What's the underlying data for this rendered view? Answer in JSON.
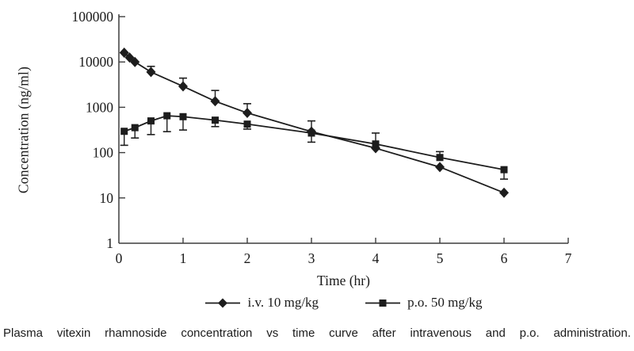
{
  "caption": "Plasma vitexin rhamnoside concentration vs time curve after intravenous and p.o. administration.",
  "chart_data": {
    "type": "line",
    "title": "",
    "xlabel": "Time (hr)",
    "ylabel": "Concentration (ng/ml)",
    "y_scale": "log",
    "grid": false,
    "legend_position": "bottom",
    "xlim": [
      0,
      7
    ],
    "ylim": [
      1,
      100000
    ],
    "x_ticks": [
      0,
      1,
      2,
      3,
      4,
      5,
      6,
      7
    ],
    "y_ticks": [
      1,
      10,
      100,
      1000,
      10000,
      100000
    ],
    "ink_color": "#1d1d1d",
    "axis_color": "#3d3d3d",
    "series": [
      {
        "name": "i.v. 10 mg/kg",
        "marker": "diamond",
        "color": "#1d1d1d",
        "points": [
          {
            "t": 0.083,
            "c": 16000
          },
          {
            "t": 0.167,
            "c": 12500
          },
          {
            "t": 0.25,
            "c": 10000
          },
          {
            "t": 0.5,
            "c": 6000,
            "err_up": 8000
          },
          {
            "t": 1,
            "c": 2900,
            "err_up": 4400
          },
          {
            "t": 1.5,
            "c": 1360,
            "err_up": 2350
          },
          {
            "t": 2,
            "c": 750,
            "err_up": 1200
          },
          {
            "t": 3,
            "c": 290,
            "err_up": 500,
            "err_down": 170
          },
          {
            "t": 4,
            "c": 125
          },
          {
            "t": 5,
            "c": 48
          },
          {
            "t": 6,
            "c": 13
          }
        ]
      },
      {
        "name": "p.o. 50 mg/kg",
        "marker": "square",
        "color": "#1d1d1d",
        "points": [
          {
            "t": 0.083,
            "c": 295,
            "err_down": 145
          },
          {
            "t": 0.25,
            "c": 355,
            "err_down": 210
          },
          {
            "t": 0.5,
            "c": 500,
            "err_down": 250
          },
          {
            "t": 0.75,
            "c": 650,
            "err_down": 290
          },
          {
            "t": 1,
            "c": 620,
            "err_down": 315
          },
          {
            "t": 1.5,
            "c": 520,
            "err_down": 375
          },
          {
            "t": 2,
            "c": 425,
            "err_down": 330
          },
          {
            "t": 3,
            "c": 270
          },
          {
            "t": 4,
            "c": 155,
            "err_up": 270
          },
          {
            "t": 5,
            "c": 78,
            "err_up": 105
          },
          {
            "t": 6,
            "c": 42,
            "err_down": 26
          }
        ]
      }
    ]
  }
}
